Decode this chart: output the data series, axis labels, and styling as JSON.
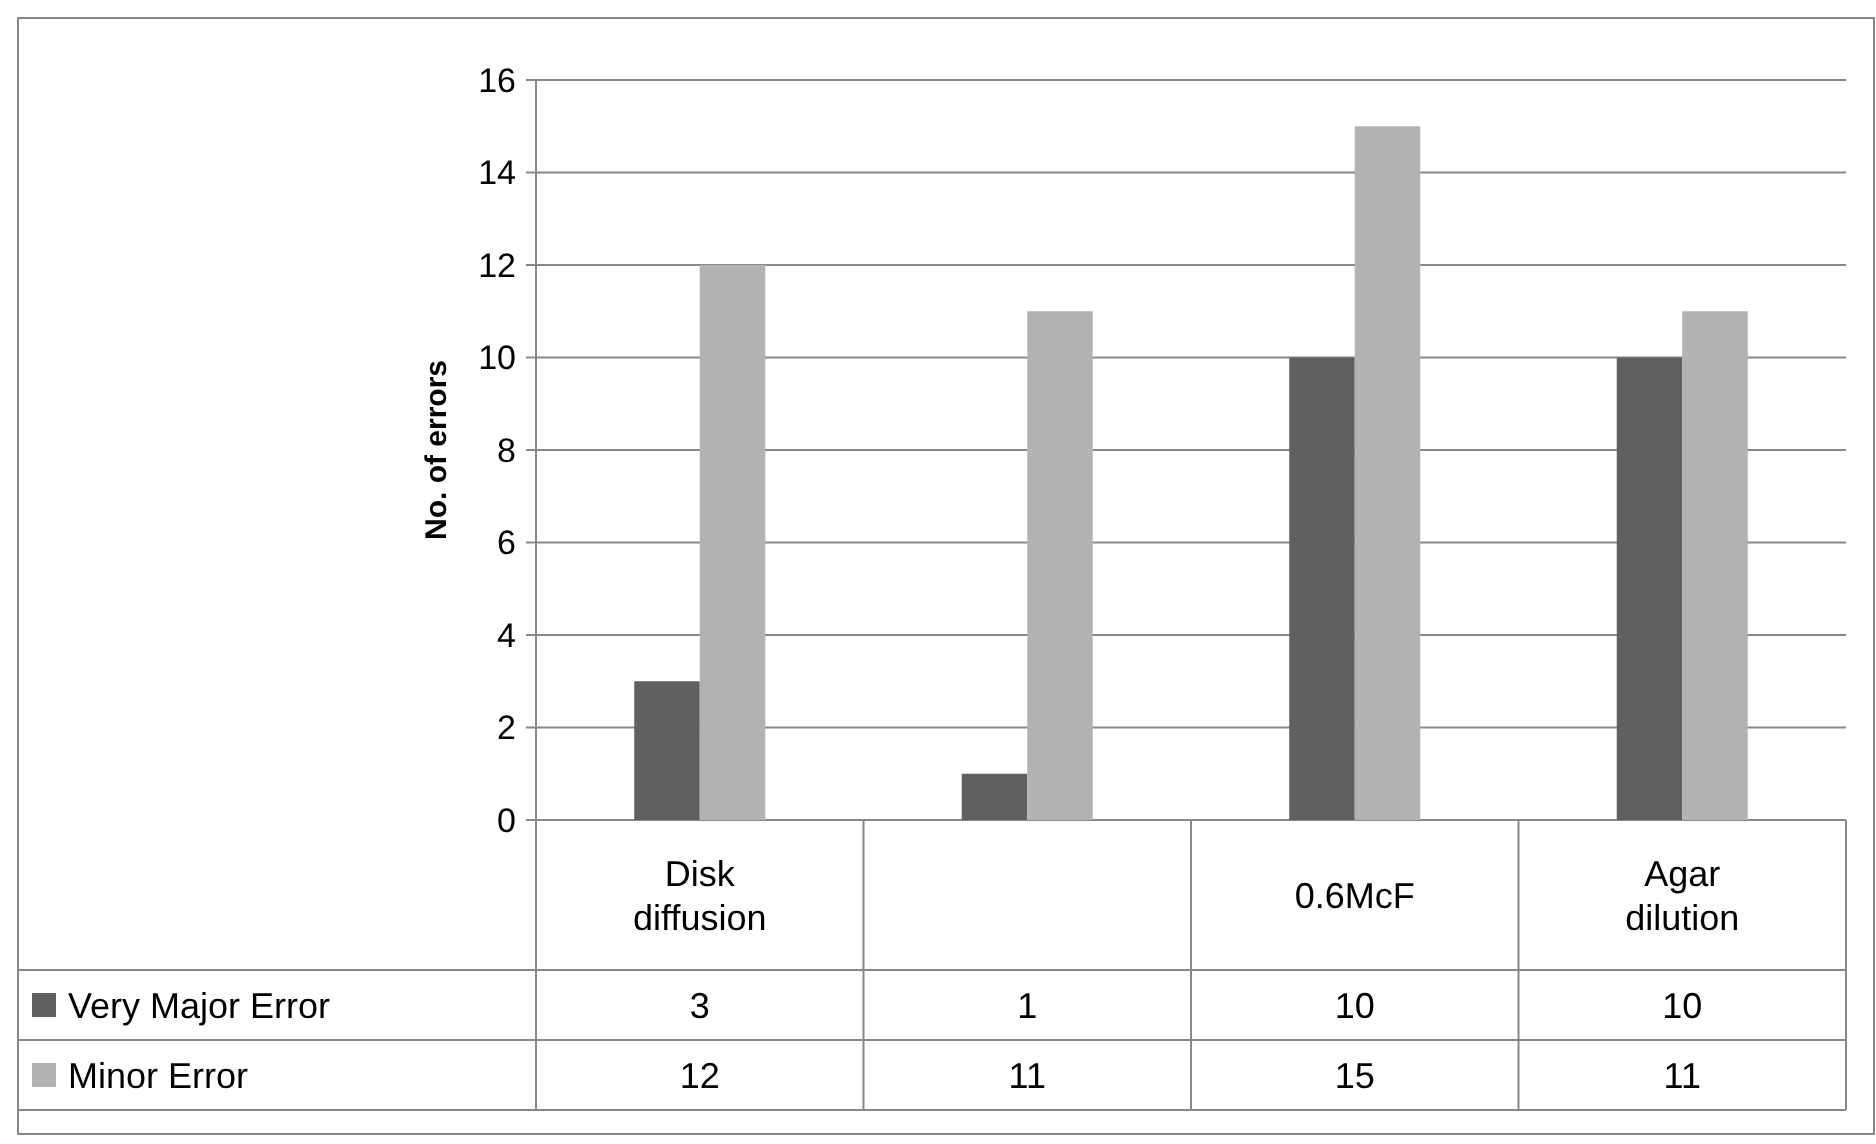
{
  "chart_data": {
    "type": "bar",
    "ylabel": "No. of errors",
    "categories": [
      "Disk diffusion",
      null,
      "0.6McF",
      "Agar dilution"
    ],
    "series": [
      {
        "name": "Very Major Error",
        "color": "#606060",
        "values": [
          3,
          1,
          10,
          10
        ]
      },
      {
        "name": "Minor Error",
        "color": "#b2b2b2",
        "values": [
          12,
          11,
          15,
          11
        ]
      }
    ],
    "ylim": [
      0,
      16
    ],
    "yticks": [
      0,
      2,
      4,
      6,
      8,
      10,
      12,
      14,
      16
    ],
    "grid": "y",
    "legend": "bottom",
    "data_labels": true
  }
}
